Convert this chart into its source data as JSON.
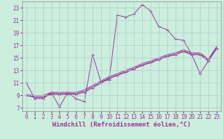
{
  "background_color": "#cceedd",
  "grid_color": "#aacccc",
  "line_color": "#993399",
  "xlabel": "Windchill (Refroidissement éolien,°C)",
  "xlabel_fontsize": 6.5,
  "tick_fontsize": 5.5,
  "xlim": [
    -0.5,
    23.5
  ],
  "ylim": [
    6.5,
    24.0
  ],
  "yticks": [
    7,
    9,
    11,
    13,
    15,
    17,
    19,
    21,
    23
  ],
  "xticks": [
    0,
    1,
    2,
    3,
    4,
    5,
    6,
    7,
    8,
    9,
    10,
    11,
    12,
    13,
    14,
    15,
    16,
    17,
    18,
    19,
    20,
    21,
    22,
    23
  ],
  "series1_x": [
    0,
    1,
    2,
    3,
    4,
    5,
    6,
    7,
    8,
    9,
    10,
    11,
    12,
    13,
    14,
    15,
    16,
    17,
    18,
    19,
    20,
    21,
    22,
    23
  ],
  "series1_y": [
    11.0,
    8.5,
    8.5,
    9.5,
    7.2,
    9.5,
    8.5,
    8.0,
    15.5,
    11.2,
    11.5,
    21.8,
    21.5,
    22.0,
    23.5,
    22.5,
    20.0,
    19.5,
    18.0,
    17.8,
    15.5,
    12.5,
    14.5,
    16.5
  ],
  "series2_x": [
    0,
    1,
    2,
    3,
    4,
    5,
    6,
    7,
    8,
    9,
    10,
    11,
    12,
    13,
    14,
    15,
    16,
    17,
    18,
    19,
    20,
    21,
    22,
    23
  ],
  "series2_y": [
    9.0,
    8.7,
    8.7,
    9.2,
    9.2,
    9.2,
    9.2,
    9.5,
    10.2,
    11.0,
    11.7,
    12.2,
    12.7,
    13.2,
    13.8,
    14.2,
    14.7,
    15.2,
    15.5,
    16.0,
    15.5,
    15.5,
    14.5,
    16.5
  ],
  "series3_x": [
    0,
    1,
    2,
    3,
    4,
    5,
    6,
    7,
    8,
    9,
    10,
    11,
    12,
    13,
    14,
    15,
    16,
    17,
    18,
    19,
    20,
    21,
    22,
    23
  ],
  "series3_y": [
    9.0,
    8.8,
    8.8,
    9.3,
    9.3,
    9.3,
    9.3,
    9.7,
    10.4,
    11.1,
    11.8,
    12.3,
    12.8,
    13.3,
    13.9,
    14.3,
    14.8,
    15.3,
    15.6,
    16.1,
    15.6,
    15.6,
    14.6,
    16.6
  ],
  "series4_x": [
    0,
    1,
    2,
    3,
    4,
    5,
    6,
    7,
    8,
    9,
    10,
    11,
    12,
    13,
    14,
    15,
    16,
    17,
    18,
    19,
    20,
    21,
    22,
    23
  ],
  "series4_y": [
    9.1,
    9.0,
    9.0,
    9.5,
    9.5,
    9.5,
    9.5,
    9.9,
    10.6,
    11.3,
    12.0,
    12.5,
    13.0,
    13.5,
    14.1,
    14.5,
    15.0,
    15.5,
    15.8,
    16.3,
    15.8,
    15.8,
    14.8,
    16.8
  ]
}
